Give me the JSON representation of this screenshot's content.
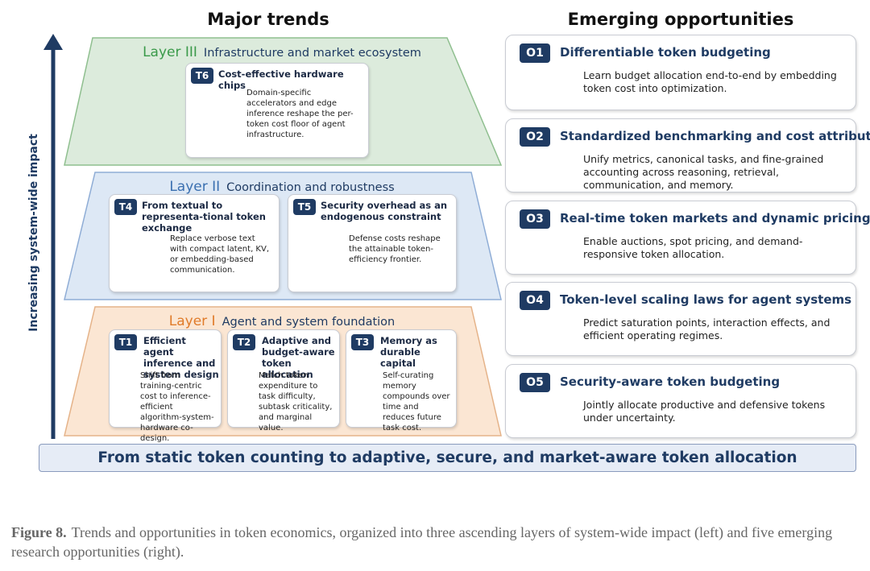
{
  "header": {
    "left_title": "Major trends",
    "right_title": "Emerging opportunities"
  },
  "axis_label": "Increasing system-wide impact",
  "layers": [
    {
      "label": "Layer III",
      "title": "Infrastructure and market ecosystem",
      "cards": [
        {
          "badge": "T6",
          "title": "Cost-effective hardware chips",
          "text": "Domain-specific accelerators and edge inference reshape the per-token cost floor of agent infrastructure."
        }
      ]
    },
    {
      "label": "Layer II",
      "title": "Coordination and robustness",
      "cards": [
        {
          "badge": "T4",
          "title": "From textual to representa-tional token exchange",
          "text": "Replace verbose text with compact latent, KV, or embedding-based communication."
        },
        {
          "badge": "T5",
          "title": "Security overhead as an endogenous constraint",
          "text": "Defense costs reshape the attainable token-efficiency frontier."
        }
      ]
    },
    {
      "label": "Layer I",
      "title": "Agent and system foundation",
      "cards": [
        {
          "badge": "T1",
          "title": "Efficient agent inference and system design",
          "text": "Shift from training-centric cost to inference-efficient algorithm-system-hardware co-design."
        },
        {
          "badge": "T2",
          "title": "Adaptive and budget-aware token allocation",
          "text": "Match token expenditure to task difficulty, subtask criticality, and marginal value."
        },
        {
          "badge": "T3",
          "title": "Memory as durable capital",
          "text": "Self-curating memory compounds over time and reduces future task cost."
        }
      ]
    }
  ],
  "opportunities": [
    {
      "badge": "O1",
      "title": "Differentiable token budgeting",
      "text": "Learn budget allocation end-to-end by embedding token cost into optimization."
    },
    {
      "badge": "O2",
      "title": "Standardized benchmarking and cost attribution",
      "text": "Unify metrics, canonical tasks, and fine-grained accounting across reasoning, retrieval, communication, and memory."
    },
    {
      "badge": "O3",
      "title": "Real-time token markets and dynamic pricing",
      "text": "Enable auctions, spot pricing, and demand-responsive token allocation."
    },
    {
      "badge": "O4",
      "title": "Token-level scaling laws for agent systems",
      "text": "Predict saturation points, interaction effects, and efficient operating regimes."
    },
    {
      "badge": "O5",
      "title": "Security-aware token budgeting",
      "text": "Jointly allocate productive and defensive tokens under uncertainty."
    }
  ],
  "banner": "From static token counting to adaptive, secure, and market-aware token allocation",
  "caption": {
    "label": "Figure 8.",
    "text": "Trends and opportunities in token economics, organized into three ascending layers of system-wide impact (left) and five emerging research opportunities (right)."
  }
}
